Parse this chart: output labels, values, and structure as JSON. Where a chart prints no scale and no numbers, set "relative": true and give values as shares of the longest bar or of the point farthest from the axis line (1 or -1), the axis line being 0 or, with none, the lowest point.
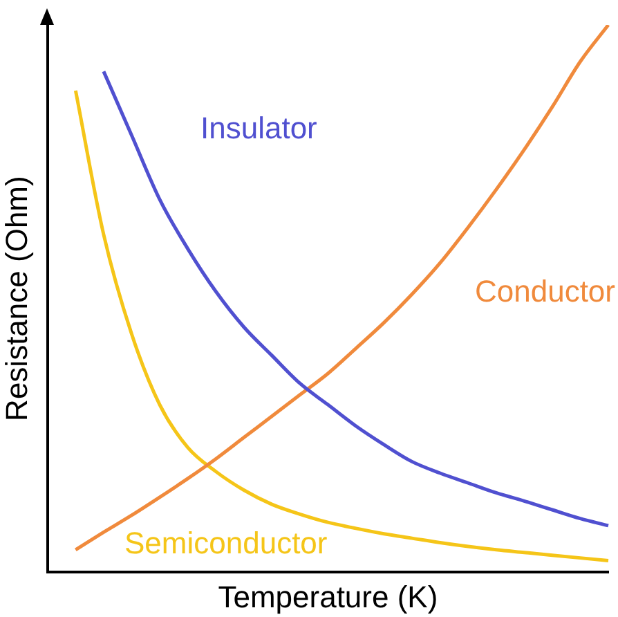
{
  "chart_data": {
    "type": "line",
    "relative": true,
    "xlabel": "Temperature (K)",
    "ylabel": "Resistance (Ohm)",
    "legend": false,
    "grid": false,
    "marker": "none",
    "line_style": "solid",
    "categories": [
      null,
      null,
      null,
      null,
      null,
      null,
      null,
      null,
      null,
      null,
      null,
      null,
      null,
      null,
      null,
      null,
      null,
      null,
      null,
      null,
      null
    ],
    "series": [
      {
        "name": "Insulator",
        "color": "#5050d0",
        "values": [
          null,
          null,
          0.915,
          0.798,
          0.681,
          0.591,
          0.513,
          0.448,
          0.396,
          0.345,
          0.306,
          0.267,
          0.233,
          0.202,
          0.181,
          0.163,
          0.145,
          0.13,
          0.114,
          0.098,
          0.085
        ]
      },
      {
        "name": "Conductor",
        "color": "#f08a3c",
        "values": [
          null,
          0.041,
          0.073,
          0.104,
          0.137,
          0.171,
          0.207,
          0.246,
          0.285,
          0.324,
          0.363,
          0.409,
          0.456,
          0.508,
          0.565,
          0.63,
          0.699,
          0.772,
          0.85,
          0.933,
          1
        ]
      },
      {
        "name": "Semiconductor",
        "color": "#f5c518",
        "values": [
          null,
          0.88,
          0.617,
          0.435,
          0.306,
          0.228,
          0.184,
          0.15,
          0.124,
          0.106,
          0.091,
          0.08,
          0.07,
          0.062,
          0.054,
          0.047,
          0.041,
          0.036,
          0.031,
          0.026,
          0.021
        ]
      }
    ]
  }
}
